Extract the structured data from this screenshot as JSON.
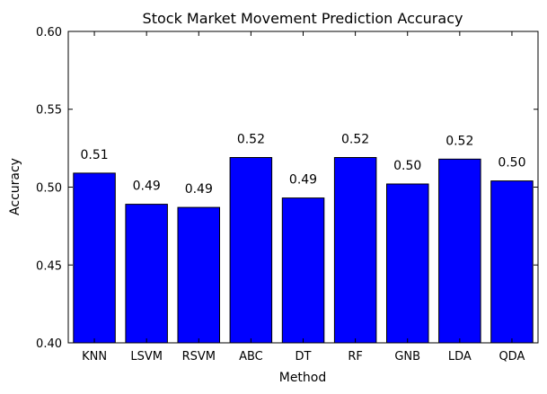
{
  "chart_data": {
    "type": "bar",
    "title": "Stock Market Movement Prediction Accuracy",
    "xlabel": "Method",
    "ylabel": "Accuracy",
    "categories": [
      "KNN",
      "LSVM",
      "RSVM",
      "ABC",
      "DT",
      "RF",
      "GNB",
      "LDA",
      "QDA"
    ],
    "values": [
      0.509,
      0.489,
      0.487,
      0.519,
      0.493,
      0.519,
      0.502,
      0.518,
      0.504
    ],
    "value_labels": [
      "0.51",
      "0.49",
      "0.49",
      "0.52",
      "0.49",
      "0.52",
      "0.50",
      "0.52",
      "0.50"
    ],
    "ylim": [
      0.4,
      0.6
    ],
    "yticks": [
      "0.40",
      "0.45",
      "0.50",
      "0.55",
      "0.60"
    ],
    "grid": false,
    "bar_color": "#0000ff",
    "edge_color": "#000000"
  }
}
